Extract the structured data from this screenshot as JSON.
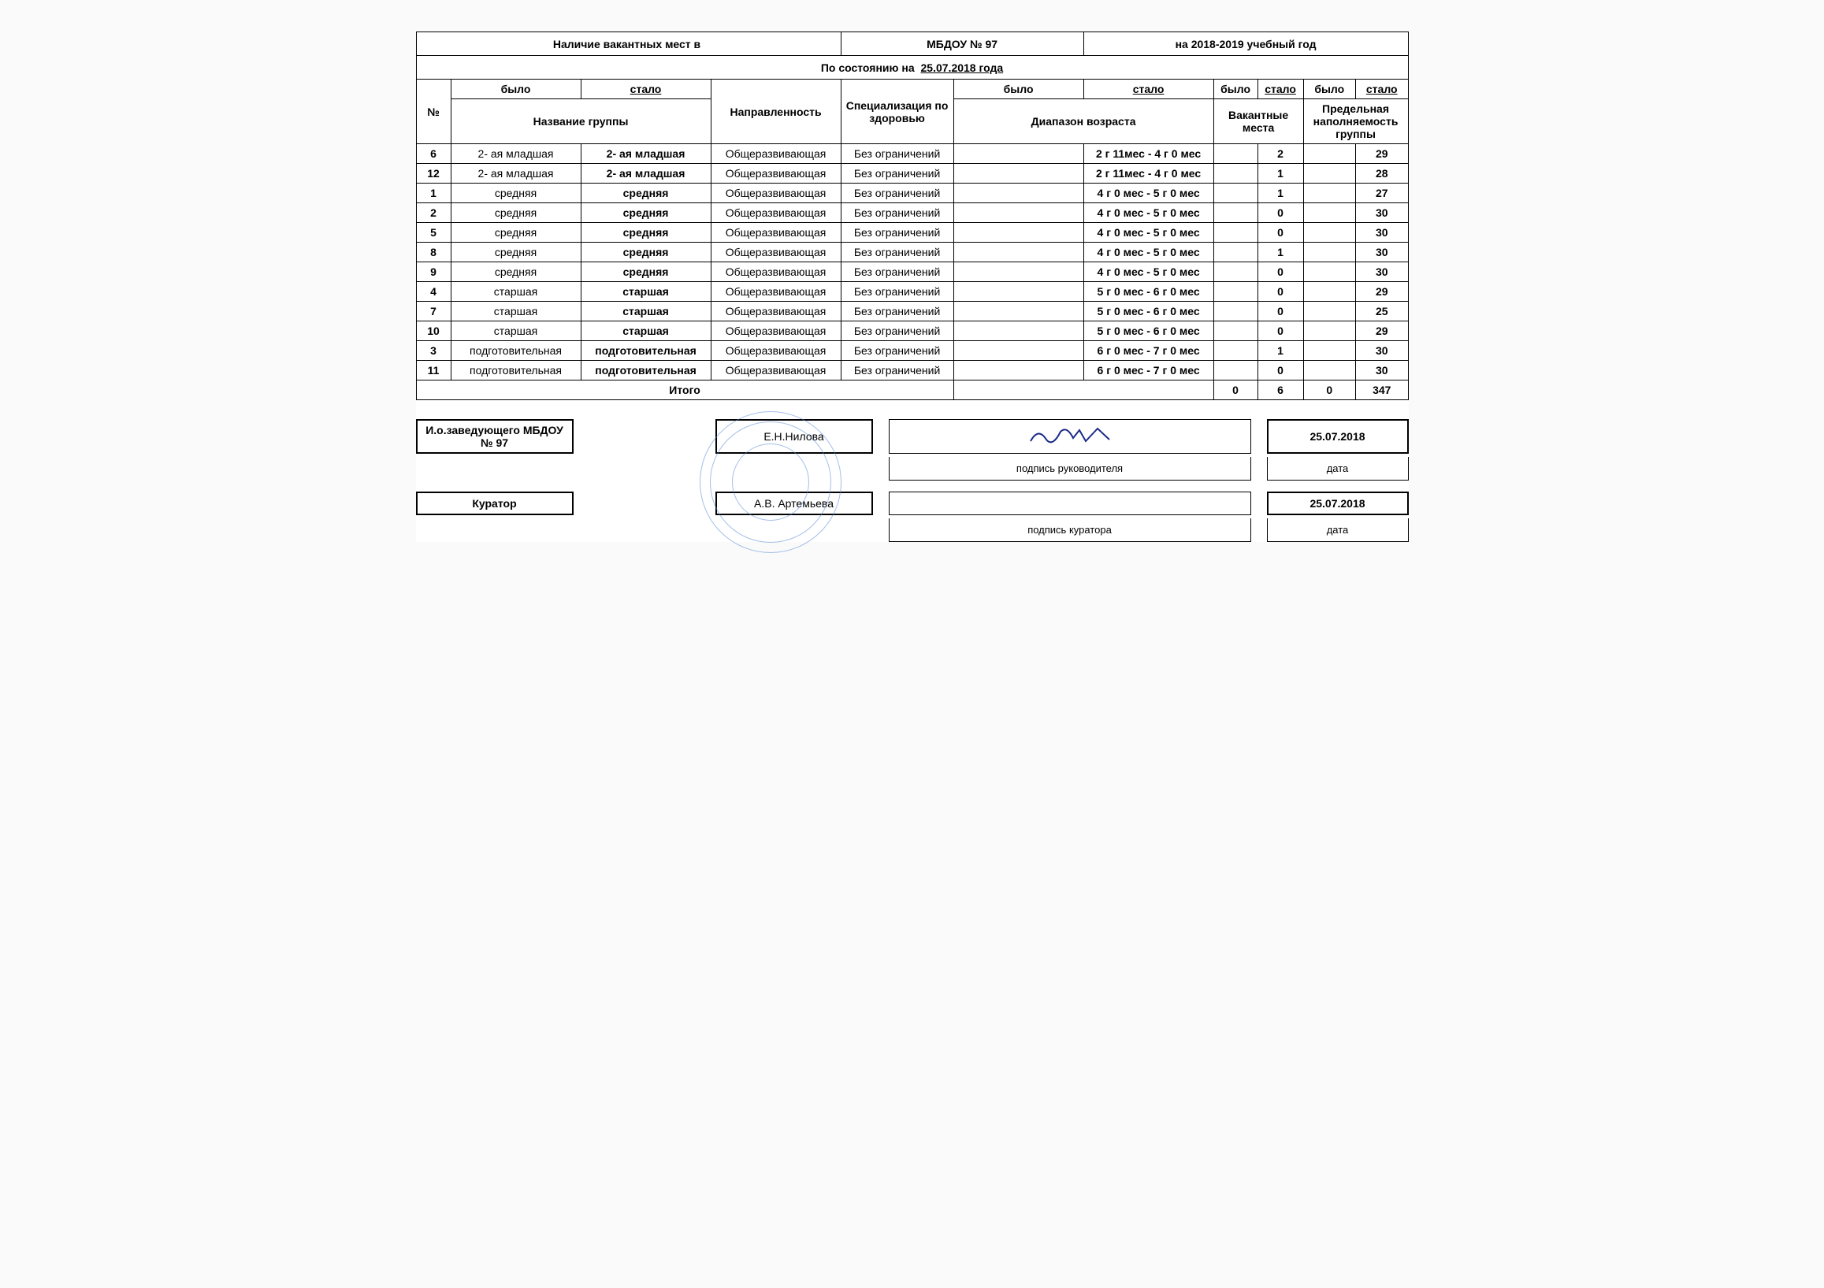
{
  "header": {
    "title_left": "Наличие вакантных мест в",
    "org": "МБДОУ  № 97",
    "period": "на 2018-2019 учебный год",
    "status_label": "По состоянию на",
    "status_date": "25.07.2018 года"
  },
  "columns": {
    "num": "№",
    "was": "было",
    "became": "стало",
    "group_name": "Название группы",
    "direction": "Направленность",
    "specialization": "Специализация по здоровью",
    "age_range": "Диапазон возраста",
    "vacancies": "Вакантные места",
    "capacity": "Предельная наполняемость группы"
  },
  "rows": [
    {
      "num": "6",
      "name_was": "2- ая младшая",
      "name_became": "2- ая младшая",
      "dir": "Общеразвивающая",
      "spec": "Без ограничений",
      "age_was": "",
      "age_became": "2 г 11мес - 4 г 0 мес",
      "vac_was": "",
      "vac_became": "2",
      "cap_was": "",
      "cap_became": "29"
    },
    {
      "num": "12",
      "name_was": "2- ая младшая",
      "name_became": "2- ая младшая",
      "dir": "Общеразвивающая",
      "spec": "Без ограничений",
      "age_was": "",
      "age_became": "2 г 11мес - 4 г 0 мес",
      "vac_was": "",
      "vac_became": "1",
      "cap_was": "",
      "cap_became": "28"
    },
    {
      "num": "1",
      "name_was": "средняя",
      "name_became": "средняя",
      "dir": "Общеразвивающая",
      "spec": "Без ограничений",
      "age_was": "",
      "age_became": "4 г 0 мес - 5 г 0 мес",
      "vac_was": "",
      "vac_became": "1",
      "cap_was": "",
      "cap_became": "27"
    },
    {
      "num": "2",
      "name_was": "средняя",
      "name_became": "средняя",
      "dir": "Общеразвивающая",
      "spec": "Без ограничений",
      "age_was": "",
      "age_became": "4 г 0 мес - 5 г 0 мес",
      "vac_was": "",
      "vac_became": "0",
      "cap_was": "",
      "cap_became": "30"
    },
    {
      "num": "5",
      "name_was": "средняя",
      "name_became": "средняя",
      "dir": "Общеразвивающая",
      "spec": "Без ограничений",
      "age_was": "",
      "age_became": "4 г 0 мес - 5 г 0 мес",
      "vac_was": "",
      "vac_became": "0",
      "cap_was": "",
      "cap_became": "30"
    },
    {
      "num": "8",
      "name_was": "средняя",
      "name_became": "средняя",
      "dir": "Общеразвивающая",
      "spec": "Без ограничений",
      "age_was": "",
      "age_became": "4 г 0 мес - 5 г 0 мес",
      "vac_was": "",
      "vac_became": "1",
      "cap_was": "",
      "cap_became": "30"
    },
    {
      "num": "9",
      "name_was": "средняя",
      "name_became": "средняя",
      "dir": "Общеразвивающая",
      "spec": "Без ограничений",
      "age_was": "",
      "age_became": "4 г 0 мес - 5 г 0 мес",
      "vac_was": "",
      "vac_became": "0",
      "cap_was": "",
      "cap_became": "30"
    },
    {
      "num": "4",
      "name_was": "старшая",
      "name_became": "старшая",
      "dir": "Общеразвивающая",
      "spec": "Без ограничений",
      "age_was": "",
      "age_became": "5 г  0 мес - 6 г 0 мес",
      "vac_was": "",
      "vac_became": "0",
      "cap_was": "",
      "cap_became": "29"
    },
    {
      "num": "7",
      "name_was": "старшая",
      "name_became": "старшая",
      "dir": "Общеразвивающая",
      "spec": "Без ограничений",
      "age_was": "",
      "age_became": "5 г  0 мес - 6 г 0 мес",
      "vac_was": "",
      "vac_became": "0",
      "cap_was": "",
      "cap_became": "25"
    },
    {
      "num": "10",
      "name_was": "старшая",
      "name_became": "старшая",
      "dir": "Общеразвивающая",
      "spec": "Без ограничений",
      "age_was": "",
      "age_became": "5 г  0 мес - 6 г 0 мес",
      "vac_was": "",
      "vac_became": "0",
      "cap_was": "",
      "cap_became": "29"
    },
    {
      "num": "3",
      "name_was": "подготовительная",
      "name_became": "подготовительная",
      "dir": "Общеразвивающая",
      "spec": "Без ограничений",
      "age_was": "",
      "age_became": "6 г 0 мес - 7 г 0 мес",
      "vac_was": "",
      "vac_became": "1",
      "cap_was": "",
      "cap_became": "30"
    },
    {
      "num": "11",
      "name_was": "подготовительная",
      "name_became": "подготовительная",
      "dir": "Общеразвивающая",
      "spec": "Без ограничений",
      "age_was": "",
      "age_became": "6 г 0 мес - 7 г 0 мес",
      "vac_was": "",
      "vac_became": "0",
      "cap_was": "",
      "cap_became": "30"
    }
  ],
  "totals": {
    "label": "Итого",
    "vac_was": "0",
    "vac_became": "6",
    "cap_was": "0",
    "cap_became": "347"
  },
  "signatures": {
    "head_role": "И.о.заведующего МБДОУ № 97",
    "head_name": "Е.Н.Нилова",
    "head_sig_label": "подпись руководителя",
    "head_date": "25.07.2018",
    "curator_role": "Куратор",
    "curator_name": "А.В. Артемьева",
    "curator_sig_label": "подпись куратора",
    "curator_date": "25.07.2018",
    "date_label": "дата"
  },
  "style": {
    "border_color": "#000000",
    "stamp_color": "#5a8ed6",
    "signature_color": "#1a2a8a",
    "font_size_body": 14,
    "font_size_small": 13
  }
}
